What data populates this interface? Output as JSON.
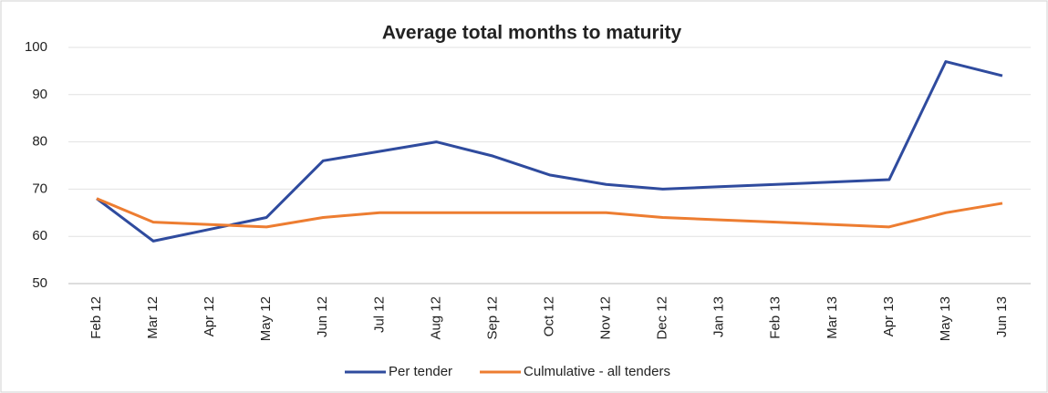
{
  "chart_data": {
    "type": "line",
    "title": "Average total months to maturity",
    "categories": [
      "Feb 12",
      "Mar 12",
      "Apr 12",
      "May 12",
      "Jun 12",
      "Jul 12",
      "Aug 12",
      "Sep 12",
      "Oct 12",
      "Nov 12",
      "Dec 12",
      "Jan 13",
      "Feb 13",
      "Mar 13",
      "Apr 13",
      "May 13",
      "Jun 13"
    ],
    "series": [
      {
        "name": "Per tender",
        "color": "#2f4b9e",
        "values": [
          68,
          59,
          61.5,
          64,
          76,
          78,
          80,
          77,
          73,
          71,
          70,
          70.5,
          71,
          71.5,
          72,
          97,
          94
        ]
      },
      {
        "name": "Culmulative - all tenders",
        "color": "#ed7d31",
        "values": [
          68,
          63,
          62.5,
          62,
          64,
          65,
          65,
          65,
          65,
          65,
          64,
          63.5,
          63,
          62.5,
          62,
          65,
          67
        ]
      }
    ],
    "ylim": [
      50,
      100
    ],
    "yticks": [
      50,
      60,
      70,
      80,
      90,
      100
    ],
    "grid": true,
    "legend": "bottom"
  }
}
